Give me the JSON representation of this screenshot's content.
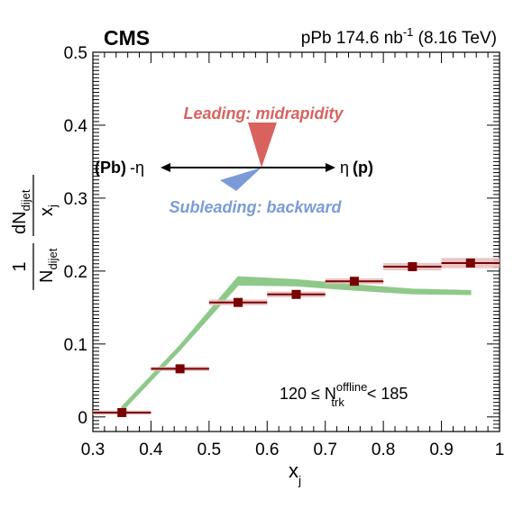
{
  "header": {
    "experiment": "CMS",
    "lumi_prefix": "pPb 174.6 nb",
    "lumi_exp": "-1",
    "lumi_suffix": " (8.16 TeV)"
  },
  "diagram": {
    "leading_label": "Leading: midrapidity",
    "subleading_label": "Subleading: backward",
    "left_label_a": "(Pb)",
    "left_label_b": "-η",
    "right_label_a": "η",
    "right_label_b": "(p)",
    "leading_color": "#d9625f",
    "subleading_color": "#7b9bd8"
  },
  "selection": {
    "prefix": "120 ≤ N",
    "sup": "offline",
    "sub": "trk",
    "suffix": " < 185"
  },
  "chart_data": {
    "type": "scatter",
    "xlim": [
      0.3,
      1.0
    ],
    "ylim": [
      -0.02,
      0.5
    ],
    "xticks": [
      "0.3",
      "0.4",
      "0.5",
      "0.6",
      "0.7",
      "0.8",
      "0.9",
      "1"
    ],
    "yticks": [
      "0",
      "0.1",
      "0.2",
      "0.3",
      "0.4",
      "0.5"
    ],
    "xlabel": "x",
    "xlabel_sub": "j",
    "ylabel": {
      "one": "1",
      "n": "N",
      "n_sub": "dijet",
      "dn": "dN",
      "dn_sub": "dijet",
      "x": "x",
      "x_sub": "j"
    },
    "series": [
      {
        "kind": "data",
        "color": "#7a0000",
        "syst_color": "#e6bcbc",
        "points": [
          {
            "x": 0.35,
            "y": 0.006,
            "xlow": 0.3,
            "xhigh": 0.4,
            "syst": 0.003
          },
          {
            "x": 0.45,
            "y": 0.066,
            "xlow": 0.4,
            "xhigh": 0.5,
            "syst": 0.003
          },
          {
            "x": 0.55,
            "y": 0.157,
            "xlow": 0.5,
            "xhigh": 0.6,
            "syst": 0.004
          },
          {
            "x": 0.65,
            "y": 0.168,
            "xlow": 0.6,
            "xhigh": 0.7,
            "syst": 0.004
          },
          {
            "x": 0.75,
            "y": 0.186,
            "xlow": 0.7,
            "xhigh": 0.8,
            "syst": 0.004
          },
          {
            "x": 0.85,
            "y": 0.206,
            "xlow": 0.8,
            "xhigh": 0.9,
            "syst": 0.005
          },
          {
            "x": 0.95,
            "y": 0.211,
            "xlow": 0.9,
            "xhigh": 1.0,
            "syst": 0.007
          }
        ]
      },
      {
        "kind": "band",
        "color": "#8fc98a",
        "points": [
          {
            "x": 0.35,
            "lo": 0.008,
            "hi": 0.014
          },
          {
            "x": 0.45,
            "lo": 0.092,
            "hi": 0.098
          },
          {
            "x": 0.55,
            "lo": 0.181,
            "hi": 0.192
          },
          {
            "x": 0.65,
            "lo": 0.18,
            "hi": 0.188
          },
          {
            "x": 0.75,
            "lo": 0.174,
            "hi": 0.181
          },
          {
            "x": 0.85,
            "lo": 0.169,
            "hi": 0.175
          },
          {
            "x": 0.95,
            "lo": 0.168,
            "hi": 0.173
          }
        ]
      }
    ]
  }
}
